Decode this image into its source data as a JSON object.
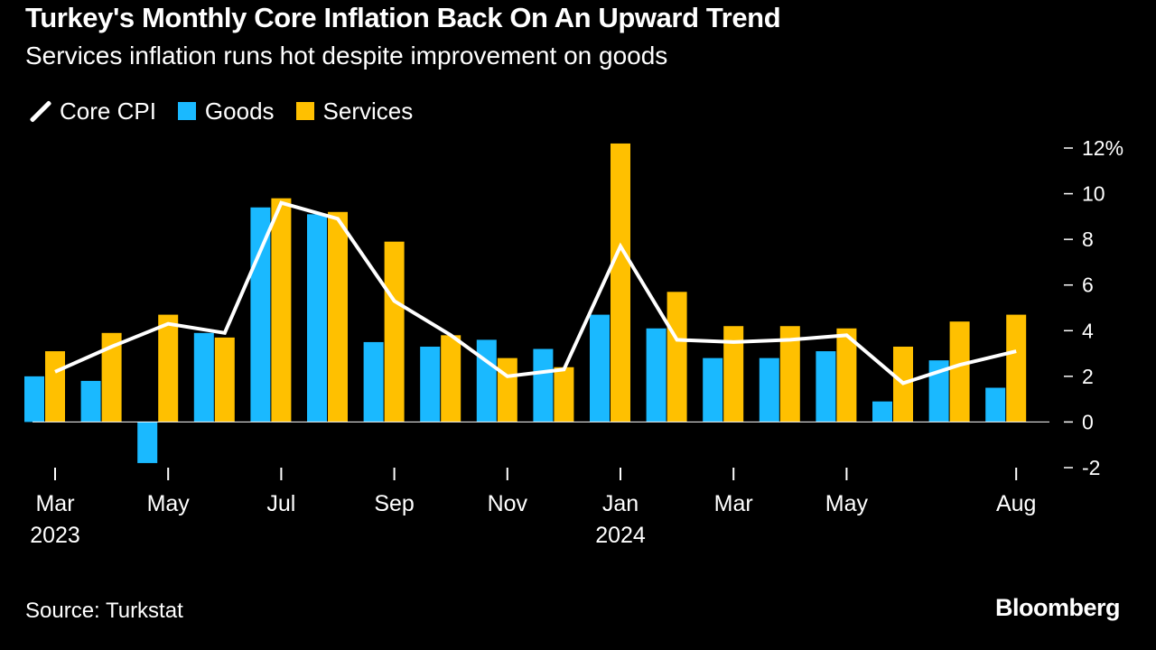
{
  "header": {
    "title": "Turkey's Monthly Core Inflation Back On An Upward Trend",
    "subtitle": "Services inflation runs hot despite improvement on goods"
  },
  "legend": {
    "core": "Core CPI",
    "goods": "Goods",
    "services": "Services"
  },
  "footer": {
    "source": "Source: Turkstat",
    "logo": "Bloomberg"
  },
  "colors": {
    "background": "#000000",
    "core": "#ffffff",
    "goods": "#1ab9ff",
    "services": "#ffc000"
  },
  "chart_data": {
    "type": "bar",
    "title": "Turkey's Monthly Core Inflation Back On An Upward Trend",
    "subtitle": "Services inflation runs hot despite improvement on goods",
    "categories": [
      "2023-03",
      "2023-04",
      "2023-05",
      "2023-06",
      "2023-07",
      "2023-08",
      "2023-09",
      "2023-10",
      "2023-11",
      "2023-12",
      "2024-01",
      "2024-02",
      "2024-03",
      "2024-04",
      "2024-05",
      "2024-06",
      "2024-07",
      "2024-08"
    ],
    "x_tick_labels": [
      {
        "index": 0,
        "label": "Mar",
        "year": "2023"
      },
      {
        "index": 2,
        "label": "May"
      },
      {
        "index": 4,
        "label": "Jul"
      },
      {
        "index": 6,
        "label": "Sep"
      },
      {
        "index": 8,
        "label": "Nov"
      },
      {
        "index": 10,
        "label": "Jan",
        "year": "2024"
      },
      {
        "index": 12,
        "label": "Mar"
      },
      {
        "index": 14,
        "label": "May"
      },
      {
        "index": 17,
        "label": "Aug"
      }
    ],
    "series": [
      {
        "name": "Goods",
        "type": "bar",
        "values": [
          2.0,
          1.8,
          -1.8,
          3.9,
          9.4,
          9.1,
          3.5,
          3.3,
          3.6,
          3.2,
          4.7,
          4.1,
          2.8,
          2.8,
          3.1,
          0.9,
          2.7,
          1.5
        ]
      },
      {
        "name": "Services",
        "type": "bar",
        "values": [
          3.1,
          3.9,
          4.7,
          3.7,
          9.8,
          9.2,
          7.9,
          3.8,
          2.8,
          2.4,
          12.2,
          5.7,
          4.2,
          4.2,
          4.1,
          3.3,
          4.4,
          4.7
        ]
      },
      {
        "name": "Core CPI",
        "type": "line",
        "values": [
          2.2,
          3.3,
          4.3,
          3.9,
          9.6,
          8.9,
          5.3,
          3.8,
          2.0,
          2.3,
          7.7,
          3.6,
          3.5,
          3.6,
          3.8,
          1.7,
          2.5,
          3.1
        ]
      }
    ],
    "y_ticks": [
      -2,
      0,
      2,
      4,
      6,
      8,
      10,
      12
    ],
    "y_tick_labels": [
      "-2",
      "0",
      "2",
      "4",
      "6",
      "8",
      "10",
      "12%"
    ],
    "ylim": [
      -2,
      12
    ],
    "y_axis_position": "right",
    "legend_position": "top-left",
    "grid": false
  }
}
